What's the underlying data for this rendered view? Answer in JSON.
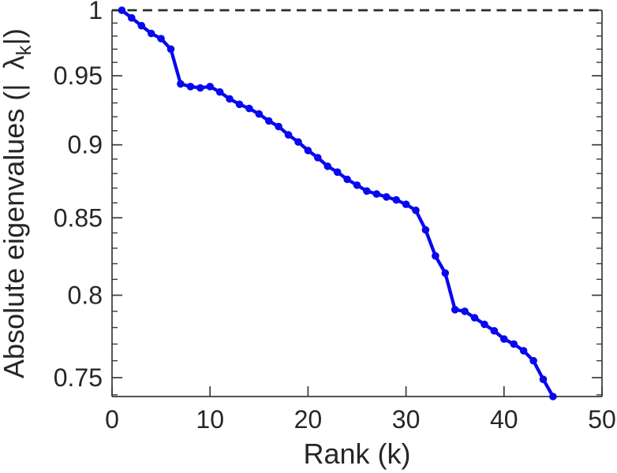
{
  "chart_data": {
    "type": "line",
    "title": "",
    "xlabel": "Rank (k)",
    "ylabel": {
      "prefix": "Absolute eigenvalues (|",
      "gap": "  ",
      "symbol": "λ",
      "subscript": "k",
      "suffix": "|)"
    },
    "x": [
      1,
      2,
      3,
      4,
      5,
      6,
      7,
      8,
      9,
      10,
      11,
      12,
      13,
      14,
      15,
      16,
      17,
      18,
      19,
      20,
      21,
      22,
      23,
      24,
      25,
      26,
      27,
      28,
      29,
      30,
      31,
      32,
      33,
      34,
      35,
      36,
      37,
      38,
      39,
      40,
      41,
      42,
      43,
      44,
      45
    ],
    "y": [
      1.0,
      0.994,
      0.988,
      0.982,
      0.978,
      0.97,
      0.944,
      0.942,
      0.941,
      0.942,
      0.938,
      0.933,
      0.929,
      0.926,
      0.922,
      0.917,
      0.913,
      0.907,
      0.902,
      0.896,
      0.891,
      0.885,
      0.881,
      0.876,
      0.872,
      0.868,
      0.866,
      0.864,
      0.862,
      0.859,
      0.855,
      0.842,
      0.825,
      0.814,
      0.791,
      0.79,
      0.786,
      0.782,
      0.778,
      0.773,
      0.77,
      0.766,
      0.76,
      0.749,
      0.739
    ],
    "xlim": [
      0,
      50
    ],
    "ylim": [
      0.739,
      1.0
    ],
    "y_scale": "log",
    "x_ticks": [
      0,
      10,
      20,
      30,
      40,
      50
    ],
    "x_tick_labels": [
      "0",
      "10",
      "20",
      "30",
      "40",
      "50"
    ],
    "y_ticks": [
      1,
      0.95,
      0.9,
      0.85,
      0.8,
      0.75
    ],
    "y_tick_labels": [
      "1",
      "0.95",
      "0.9",
      "0.85",
      "0.8",
      "0.75"
    ],
    "y_minor_tick_step": 0.01,
    "reference_line_y": 1.0,
    "grid": false,
    "line_color": "#0808f0",
    "marker_color": "#0808f0",
    "axis_color": "#3a3a3a",
    "label_color": "#262626",
    "reference_line_color": "#2b2b2b"
  }
}
